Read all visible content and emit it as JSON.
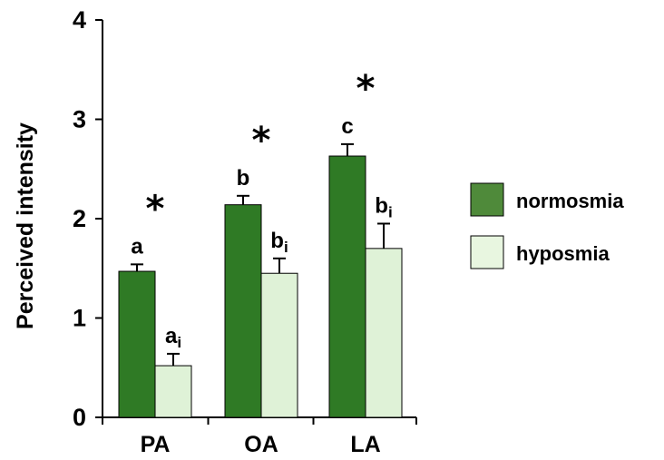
{
  "chart_data": {
    "type": "bar",
    "title": "",
    "xlabel": "",
    "ylabel": "Perceived intensity",
    "ylim": [
      0,
      4
    ],
    "yticks": [
      0,
      1,
      2,
      3,
      4
    ],
    "categories": [
      "PA",
      "OA",
      "LA"
    ],
    "series": [
      {
        "name": "normosmia",
        "color": "#2f7a25",
        "values": [
          1.47,
          2.14,
          2.63
        ],
        "errors": [
          0.07,
          0.09,
          0.12
        ],
        "labels": [
          "a",
          "b",
          "c"
        ]
      },
      {
        "name": "hyposmia",
        "color": "#dff2d7",
        "values": [
          0.52,
          1.45,
          1.7
        ],
        "errors": [
          0.12,
          0.15,
          0.25
        ],
        "labels": [
          {
            "base": "a",
            "sub": "i"
          },
          {
            "base": "b",
            "sub": "i"
          },
          {
            "base": "b",
            "sub": "i"
          }
        ]
      }
    ],
    "significance_marker": "*",
    "legend_position": "right",
    "grid": false
  }
}
